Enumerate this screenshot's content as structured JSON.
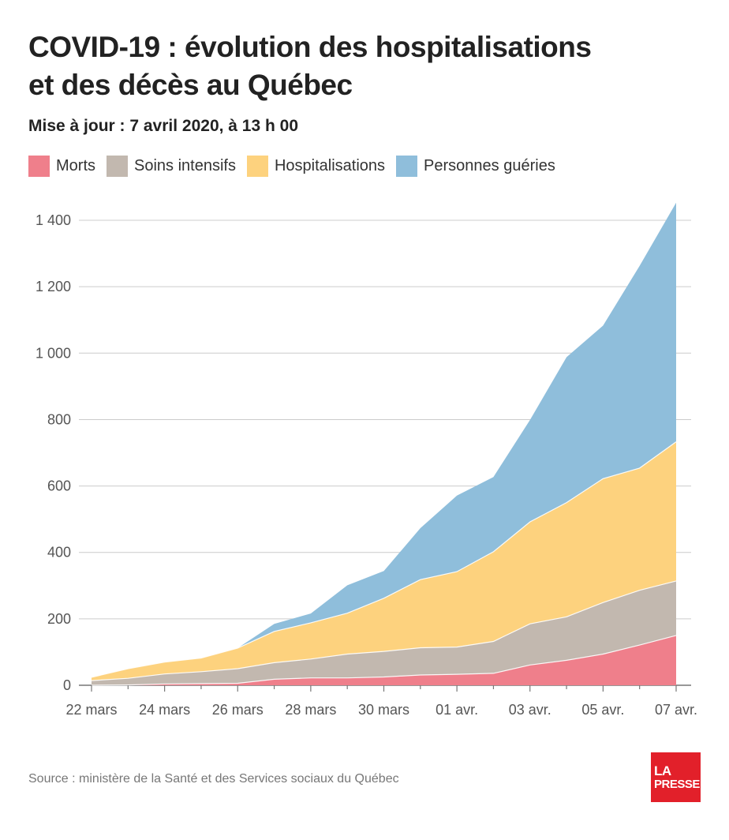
{
  "header": {
    "title_line1": "COVID-19 : évolution des hospitalisations",
    "title_line2": "et des décès au Québec",
    "subtitle": "Mise à jour : 7 avril 2020, à 13 h 00"
  },
  "legend": [
    {
      "label": "Morts",
      "color": "#ef7f8b"
    },
    {
      "label": "Soins intensifs",
      "color": "#c2b8af"
    },
    {
      "label": "Hospitalisations",
      "color": "#fdd27e"
    },
    {
      "label": "Personnes guéries",
      "color": "#8fbedb"
    }
  ],
  "footer": {
    "source": "Source : ministère de la Santé et des Services sociaux du Québec",
    "logo_line1": "LA",
    "logo_line2": "PRESSE"
  },
  "chart_data": {
    "type": "area",
    "stacked": true,
    "title": "COVID-19 : évolution des hospitalisations et des décès au Québec",
    "subtitle": "Mise à jour : 7 avril 2020, à 13 h 00",
    "x": [
      "22 mars",
      "23 mars",
      "24 mars",
      "25 mars",
      "26 mars",
      "27 mars",
      "28 mars",
      "29 mars",
      "30 mars",
      "31 mars",
      "01 avr.",
      "02 avr.",
      "03 avr.",
      "04 avr.",
      "05 avr.",
      "06 avr.",
      "07 avr."
    ],
    "x_tick_labels": [
      "22 mars",
      "24 mars",
      "26 mars",
      "28 mars",
      "30 mars",
      "01 avr.",
      "03 avr.",
      "05 avr.",
      "07 avr."
    ],
    "ylim": [
      0,
      1450
    ],
    "y_ticks": [
      0,
      200,
      400,
      600,
      800,
      1000,
      1200,
      1400
    ],
    "y_tick_labels": [
      "0",
      "200",
      "400",
      "600",
      "800",
      "1 000",
      "1 200",
      "1 400"
    ],
    "grid": true,
    "legend_position": "top-left",
    "series": [
      {
        "name": "Morts",
        "color": "#ef7f8b",
        "values": [
          0,
          1,
          4,
          5,
          6,
          18,
          22,
          22,
          25,
          31,
          33,
          36,
          61,
          75,
          94,
          121,
          150
        ]
      },
      {
        "name": "Soins intensifs",
        "color": "#c2b8af",
        "values": [
          14,
          20,
          30,
          36,
          44,
          50,
          57,
          72,
          77,
          82,
          82,
          96,
          124,
          131,
          155,
          165,
          164
        ]
      },
      {
        "name": "Hospitalisations",
        "color": "#fdd27e",
        "values": [
          10,
          29,
          36,
          41,
          62,
          94,
          109,
          123,
          160,
          205,
          227,
          270,
          307,
          344,
          373,
          368,
          419
        ]
      },
      {
        "name": "Personnes guéries",
        "color": "#8fbedb",
        "values": [
          0,
          0,
          0,
          0,
          0,
          23,
          28,
          84,
          82,
          155,
          229,
          225,
          307,
          438,
          461,
          609,
          720
        ]
      }
    ]
  }
}
